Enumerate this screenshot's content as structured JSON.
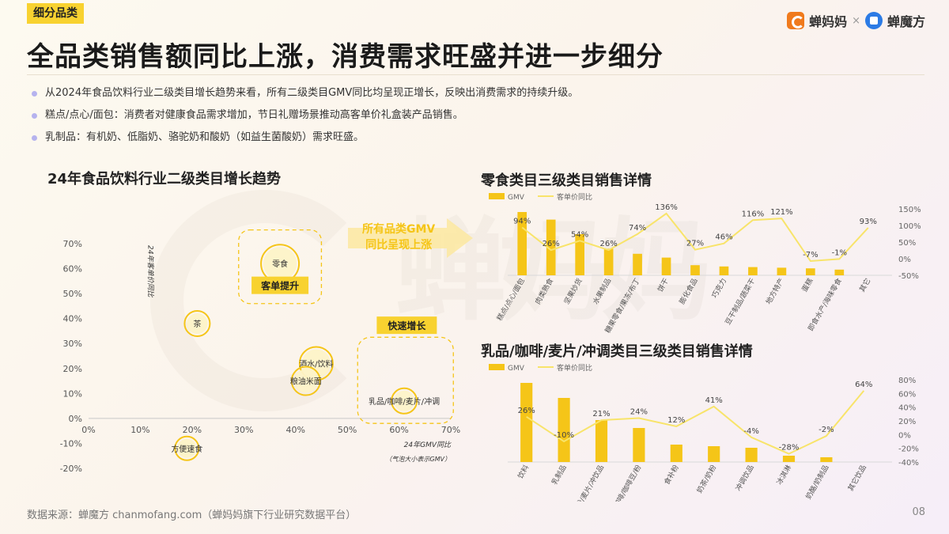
{
  "header": {
    "tag": "细分品类",
    "title": "全品类销售额同比上涨，消费需求旺盛并进一步细分",
    "brand_a": "蝉妈妈",
    "brand_sep": "×",
    "brand_b": "蝉魔方"
  },
  "bullets": [
    "从2024年食品饮料行业二级类目增长趋势来看，所有二级类目GMV同比均呈现正增长，反映出消费需求的持续升级。",
    "糕点/点心/面包：消费者对健康食品需求增加，节日礼赠场景推动高客单价礼盒装产品销售。",
    "乳制品：有机奶、低脂奶、骆驼奶和酸奶（如益生菌酸奶）需求旺盛。"
  ],
  "watermark": "蝉妈妈",
  "arrow_text": [
    "所有品类GMV",
    "同比呈现上涨"
  ],
  "footer": {
    "source": "数据来源：蝉魔方 chanmofang.com（蝉妈妈旗下行业研究数据平台）",
    "page": "08"
  },
  "colors": {
    "accent": "#f8d230",
    "bar": "#f5c518",
    "line": "#f8e46a",
    "bullet": "#b6b3ee"
  },
  "chart_data": [
    {
      "type": "scatter",
      "title": "24年食品饮料行业二级类目增长趋势",
      "xlabel": "24年GMV同比",
      "ylabel": "24年客单价同比",
      "size_note": "（气泡大小表示GMV）",
      "xlim": [
        0,
        0.7
      ],
      "ylim": [
        -0.2,
        0.7
      ],
      "xticks": [
        "0%",
        "10%",
        "20%",
        "30%",
        "40%",
        "50%",
        "60%",
        "70%"
      ],
      "yticks": [
        "-20%",
        "-10%",
        "0%",
        "10%",
        "20%",
        "30%",
        "40%",
        "50%",
        "60%",
        "70%"
      ],
      "points": [
        {
          "name": "零食",
          "x": 0.37,
          "y": 0.62,
          "size": 22
        },
        {
          "name": "茶",
          "x": 0.21,
          "y": 0.38,
          "size": 14
        },
        {
          "name": "酒水/饮料",
          "x": 0.44,
          "y": 0.22,
          "size": 19
        },
        {
          "name": "粮油米面",
          "x": 0.42,
          "y": 0.15,
          "size": 16
        },
        {
          "name": "乳品/咖啡/麦片/冲调",
          "x": 0.61,
          "y": 0.07,
          "size": 14
        },
        {
          "name": "方便速食",
          "x": 0.19,
          "y": -0.12,
          "size": 13
        }
      ],
      "annotations": [
        "客单提升",
        "快速增长"
      ]
    },
    {
      "type": "bar",
      "title": "零食类目三级类目销售详情",
      "legend": [
        "GMV",
        "客单价同比"
      ],
      "ylim_right": [
        -0.5,
        1.5
      ],
      "yticks_right": [
        "-50%",
        "0%",
        "50%",
        "100%",
        "150%"
      ],
      "categories": [
        "糕点/点心/面包",
        "肉类熟食",
        "坚果炒货",
        "水果制品",
        "糖果零食/果冻/布丁",
        "饼干",
        "膨化食品",
        "巧克力",
        "豆干制品/蔬菜干",
        "地方特产",
        "蛋糕",
        "即食水产/海味零食",
        "其它"
      ],
      "series": [
        {
          "name": "GMV",
          "values": [
            100,
            88,
            65,
            42,
            34,
            28,
            16,
            14,
            13,
            12,
            11,
            9,
            0
          ]
        },
        {
          "name": "客单价同比",
          "values": [
            0.94,
            0.26,
            0.54,
            0.26,
            0.74,
            1.36,
            0.27,
            0.46,
            1.16,
            1.21,
            -0.07,
            -0.01,
            0.93
          ],
          "labels": [
            "94%",
            "26%",
            "54%",
            "26%",
            "74%",
            "136%",
            "27%",
            "46%",
            "116%",
            "121%",
            "-7%",
            "-1%",
            "93%"
          ]
        }
      ]
    },
    {
      "type": "bar",
      "title": "乳品/咖啡/麦片/冲调类目三级类目销售详情",
      "legend": [
        "GMV",
        "客单价同比"
      ],
      "ylim_right": [
        -0.4,
        0.8
      ],
      "yticks_right": [
        "-40%",
        "-20%",
        "0%",
        "20%",
        "40%",
        "60%",
        "80%"
      ],
      "categories": [
        "饮料",
        "乳制品",
        "藕粉/麦片/冲饮品",
        "速溶咖啡/咖啡豆/粉",
        "食补粉",
        "奶茶/奶粉",
        "冲调饮品",
        "冰淇淋",
        "奶酪/奶制品",
        "其它饮品"
      ],
      "series": [
        {
          "name": "GMV",
          "values": [
            100,
            81,
            53,
            43,
            22,
            20,
            18,
            8,
            6,
            0
          ]
        },
        {
          "name": "客单价同比",
          "values": [
            0.26,
            -0.1,
            0.21,
            0.24,
            0.12,
            0.41,
            -0.04,
            -0.28,
            -0.02,
            0.64
          ],
          "labels": [
            "26%",
            "-10%",
            "21%",
            "24%",
            "12%",
            "41%",
            "-4%",
            "-28%",
            "-2%",
            "64%"
          ]
        }
      ]
    }
  ]
}
